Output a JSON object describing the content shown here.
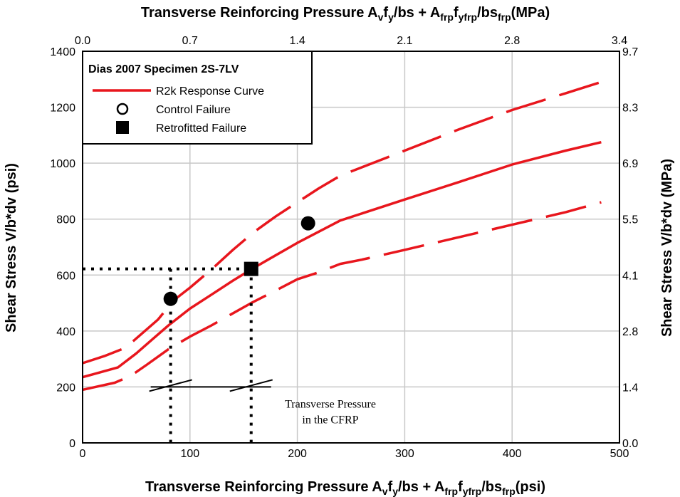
{
  "chart_data": {
    "type": "line",
    "title": "",
    "xlabel": "Transverse Reinforcing Pressure A_v f_y / bs + A_frp f_yfrp / bs_frp (psi)",
    "xlabel_top": "Transverse Reinforcing Pressure A_v f_y / bs + A_frp f_yfrp / bs_frp (MPa)",
    "ylabel": "Shear Stress V/b*dv (psi)",
    "ylabel_right": "Shear Stress V/b*dv (MPa)",
    "xlim": [
      0,
      500
    ],
    "ylim": [
      0,
      1400
    ],
    "grid": true,
    "legend_position": "top-left",
    "x_ticks": [
      "0",
      "100",
      "200",
      "300",
      "400",
      "500"
    ],
    "y_ticks": [
      "0",
      "200",
      "400",
      "600",
      "800",
      "1000",
      "1200",
      "1400"
    ],
    "x_ticks_top": [
      "0.0",
      "0.7",
      "1.4",
      "2.1",
      "2.8",
      "3.4"
    ],
    "y_ticks_right": [
      "0.0",
      "1.4",
      "2.8",
      "4.1",
      "5.5",
      "6.9",
      "8.3",
      "9.7"
    ],
    "legend": {
      "title": "Dias 2007 Specimen 2S-7LV",
      "entries": [
        {
          "label": "R2k Response Curve",
          "marker": "line"
        },
        {
          "label": "Control Failure",
          "marker": "open-circle"
        },
        {
          "label": "Retrofitted Failure",
          "marker": "filled-square"
        }
      ]
    },
    "series": [
      {
        "name": "R2k Response Curve",
        "style": "solid",
        "color": "#e8161d",
        "x": [
          0,
          33,
          50,
          65,
          80,
          100,
          120,
          140,
          157,
          175,
          200,
          240,
          300,
          350,
          400,
          450,
          483
        ],
        "y": [
          235,
          270,
          320,
          370,
          420,
          480,
          530,
          580,
          620,
          660,
          715,
          795,
          870,
          932,
          995,
          1045,
          1075
        ]
      },
      {
        "name": "",
        "style": "dashed",
        "color": "#e8161d",
        "x": [
          0,
          20,
          40,
          55,
          70,
          85,
          100,
          120,
          140,
          160,
          180,
          200,
          220,
          240,
          260,
          300,
          350,
          400,
          450,
          483
        ],
        "y": [
          285,
          310,
          340,
          390,
          440,
          510,
          555,
          620,
          690,
          755,
          810,
          860,
          910,
          955,
          985,
          1045,
          1120,
          1190,
          1250,
          1290
        ]
      },
      {
        "name": "",
        "style": "dashed",
        "color": "#e8161d",
        "x": [
          0,
          30,
          45,
          60,
          80,
          100,
          120,
          157,
          180,
          200,
          220,
          240,
          260,
          300,
          350,
          400,
          450,
          483
        ],
        "y": [
          190,
          215,
          240,
          280,
          335,
          380,
          420,
          500,
          545,
          585,
          610,
          640,
          655,
          690,
          735,
          780,
          825,
          860
        ]
      }
    ],
    "points": [
      {
        "label": "Control Failure",
        "shape": "circle",
        "x": 82,
        "y": 515
      },
      {
        "label": "Control Failure",
        "shape": "circle",
        "x": 210,
        "y": 785
      },
      {
        "label": "Retrofitted Failure",
        "shape": "square",
        "x": 157,
        "y": 622
      }
    ],
    "reference_lines": {
      "horizontal_y": 622,
      "horizontal_x_end": 157,
      "vertical_x": [
        82,
        157
      ]
    },
    "annotation": {
      "lines": [
        "Transverse Pressure",
        "in the CFRP"
      ],
      "bracket_y": 200,
      "bracket_x": [
        82,
        157
      ]
    }
  }
}
